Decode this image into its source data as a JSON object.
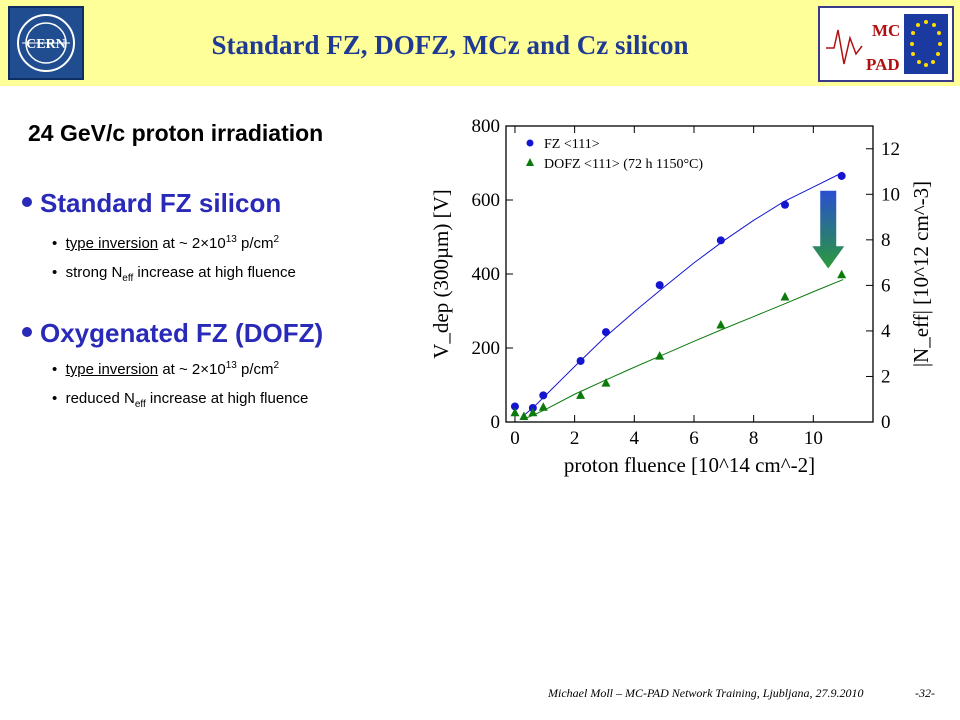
{
  "header": {
    "title": "Standard FZ, DOFZ, MCz and Cz silicon",
    "cern_logo_text": "CERN",
    "mcpad_logo_text": [
      "MC",
      "PAD"
    ]
  },
  "subheading": "24 GeV/c proton irradiation",
  "sections": [
    {
      "title": "Standard FZ silicon",
      "bullets": [
        {
          "pre": "type inversion",
          "post": " at   ~ 2×10",
          "sup": "13",
          "tail": " p/cm",
          "tail_sup": "2"
        },
        {
          "pre": "strong N",
          "sub": "eff",
          "post": " increase at high fluence"
        }
      ]
    },
    {
      "title": "Oxygenated FZ (DOFZ)",
      "bullets": [
        {
          "pre": "type inversion",
          "post": " at   ~ 2×10",
          "sup": "13",
          "tail": " p/cm",
          "tail_sup": "2"
        },
        {
          "pre": "reduced N",
          "sub": "eff",
          "post": " increase at high fluence"
        }
      ]
    }
  ],
  "footer": "Michael Moll – MC-PAD Network Training, Ljubljana, 27.9.2010",
  "page_number": "-32-",
  "chart_data": {
    "type": "scatter",
    "xlabel": "proton fluence [10^14 cm^-2]",
    "ylabel": "V_dep (300µm) [V]",
    "y2label": "|N_eff| [10^12 cm^-3]",
    "xlim": [
      -0.3,
      12
    ],
    "ylim": [
      0,
      800
    ],
    "y2lim": [
      0,
      13
    ],
    "xticks": [
      0,
      2,
      4,
      6,
      8,
      10
    ],
    "yticks": [
      0,
      200,
      400,
      600,
      800
    ],
    "y2ticks": [
      0,
      2,
      4,
      6,
      8,
      10,
      12
    ],
    "legend_position": "top-left",
    "series": [
      {
        "name": "FZ        <111>",
        "marker": "circle",
        "color": "#1515d0",
        "x": [
          0.0,
          0.6,
          0.95,
          2.2,
          3.05,
          4.85,
          6.9,
          9.05,
          10.95
        ],
        "y": [
          42,
          38,
          72,
          165,
          243,
          370,
          491,
          587,
          665
        ],
        "fit_x": [
          0.3,
          0.6,
          1.0,
          1.5,
          2.0,
          3.0,
          4.0,
          5.0,
          6.0,
          7.0,
          8.0,
          9.0,
          10.0,
          11.0
        ],
        "fit_y": [
          18,
          38,
          70,
          110,
          150,
          228,
          298,
          365,
          430,
          490,
          545,
          595,
          635,
          675
        ]
      },
      {
        "name": "DOFZ <111> (72 h 1150°C)",
        "marker": "triangle",
        "color": "#0a7a0a",
        "x": [
          0.0,
          0.3,
          0.6,
          0.95,
          2.2,
          3.05,
          4.85,
          6.9,
          9.05,
          10.95
        ],
        "y": [
          25,
          15,
          25,
          40,
          72,
          105,
          178,
          262,
          338,
          398
        ],
        "fit_x": [
          0.3,
          0.6,
          1.0,
          2.0,
          3.0,
          4.0,
          5.0,
          6.0,
          7.0,
          8.0,
          9.0,
          10.0,
          11.0
        ],
        "fit_y": [
          8,
          18,
          33,
          75,
          112,
          148,
          183,
          218,
          252,
          285,
          318,
          352,
          385
        ]
      }
    ]
  }
}
